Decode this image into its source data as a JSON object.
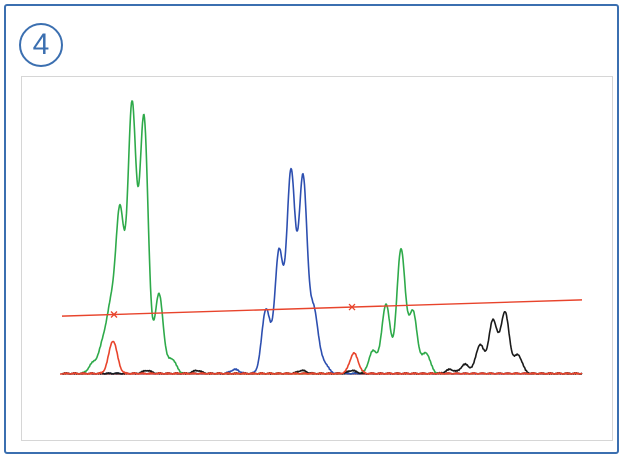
{
  "step": {
    "number": "4"
  },
  "chart_data": {
    "type": "line",
    "title": "",
    "xlabel": "",
    "ylabel": "",
    "xlim": [
      0,
      520
    ],
    "ylim": [
      0,
      260
    ],
    "grid": false,
    "colors": {
      "green": "#2eaa4a",
      "blue": "#2d4fb0",
      "black": "#1a1a1a",
      "red": "#e8442c",
      "frame": "#3b6fb0"
    },
    "series": [
      {
        "color": "green",
        "peaks": [
          [
            31,
            10
          ],
          [
            41,
            27
          ],
          [
            49,
            58
          ],
          [
            58,
            156
          ],
          [
            70,
            262
          ],
          [
            82,
            250
          ],
          [
            97,
            78
          ],
          [
            110,
            14
          ],
          [
            311,
            22
          ],
          [
            324,
            68
          ],
          [
            339,
            122
          ],
          [
            351,
            60
          ],
          [
            364,
            20
          ]
        ]
      },
      {
        "color": "blue",
        "peaks": [
          [
            173,
            4
          ],
          [
            204,
            63
          ],
          [
            217,
            119
          ],
          [
            229,
            197
          ],
          [
            241,
            191
          ],
          [
            252,
            60
          ],
          [
            262,
            10
          ]
        ]
      },
      {
        "color": "black",
        "peaks": [
          [
            85,
            3
          ],
          [
            135,
            3
          ],
          [
            240,
            3
          ],
          [
            290,
            3
          ],
          [
            388,
            4
          ],
          [
            403,
            9
          ],
          [
            418,
            28
          ],
          [
            431,
            52
          ],
          [
            443,
            60
          ],
          [
            456,
            18
          ]
        ]
      },
      {
        "color": "red",
        "peaks": [
          [
            51,
            32
          ],
          [
            292,
            20
          ]
        ]
      }
    ],
    "threshold": {
      "color": "red",
      "x": [
        0,
        520
      ],
      "y": [
        57,
        73
      ],
      "markers_x": [
        52,
        290
      ]
    },
    "baseline": {
      "color": "red",
      "y": 0
    }
  }
}
